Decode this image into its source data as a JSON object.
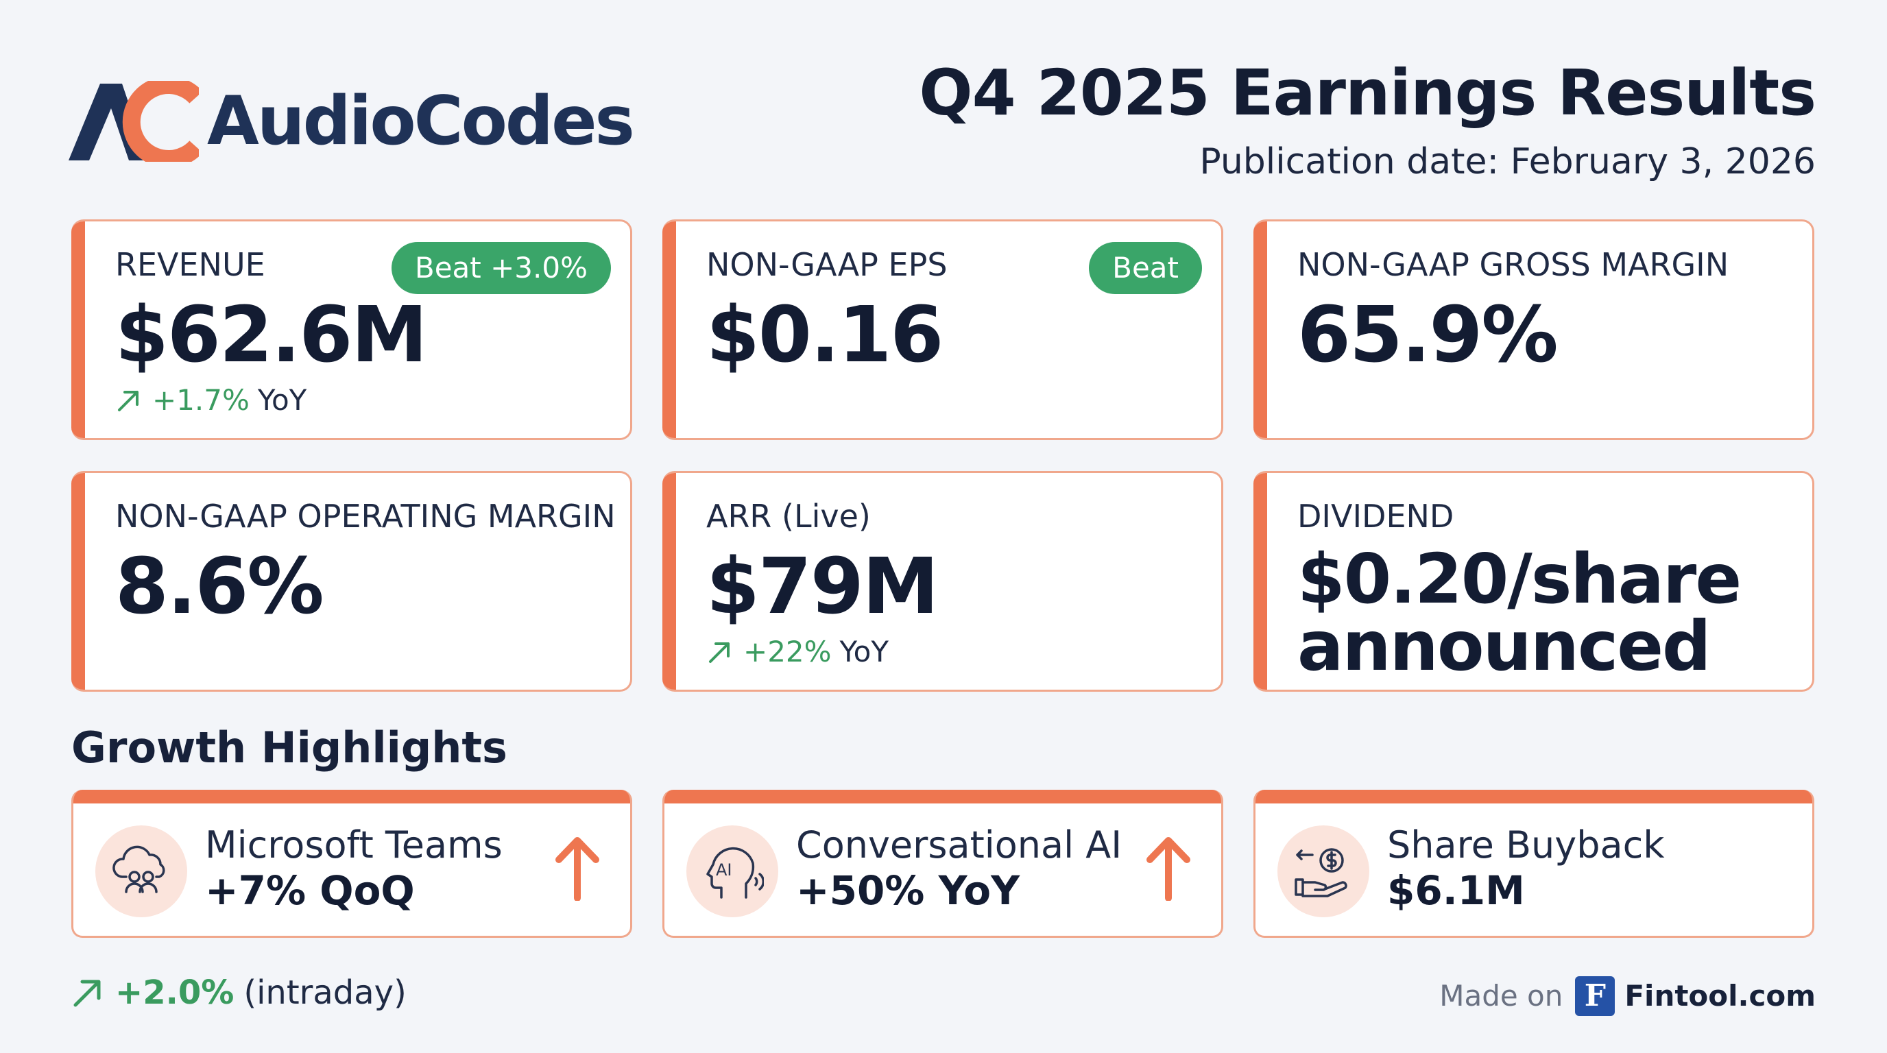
{
  "header": {
    "logo_text": "AudioCodes",
    "title": "Q4 2025 Earnings Results",
    "publication_date": "Publication date: February 3, 2026"
  },
  "metrics": [
    {
      "label": "REVENUE",
      "value": "$62.6M",
      "badge": "Beat +3.0%",
      "delta": "+1.7%",
      "delta_suffix": "YoY"
    },
    {
      "label": "NON-GAAP EPS",
      "value": "$0.16",
      "badge": "Beat"
    },
    {
      "label": "NON-GAAP GROSS MARGIN",
      "value": "65.9%"
    },
    {
      "label": "NON-GAAP OPERATING MARGIN",
      "value": "8.6%"
    },
    {
      "label": "ARR (Live)",
      "value": "$79M",
      "delta": "+22%",
      "delta_suffix": "YoY"
    },
    {
      "label": "DIVIDEND",
      "value": "$0.20/share announced"
    }
  ],
  "growth": {
    "title": "Growth Highlights",
    "items": [
      {
        "title": "Microsoft Teams",
        "value": "+7% QoQ",
        "icon": "cloud-users-icon"
      },
      {
        "title": "Conversational AI",
        "value": "+50% YoY",
        "icon": "ai-voice-icon",
        "icon_text": "AI"
      },
      {
        "title": "Share Buyback",
        "value": "$6.1M",
        "icon": "hand-dollar-icon"
      }
    ]
  },
  "footer": {
    "stock_change": "+2.0%",
    "stock_suffix": "(intraday)",
    "made_on": "Made on",
    "brand_letter": "F",
    "brand": "Fintool.com"
  },
  "colors": {
    "accent": "#ee7650",
    "card_border": "#f0a78c",
    "beat_green": "#3aa569",
    "positive_text": "#3a9b5f",
    "navy": "#1f3257",
    "background": "#f3f5f9"
  }
}
